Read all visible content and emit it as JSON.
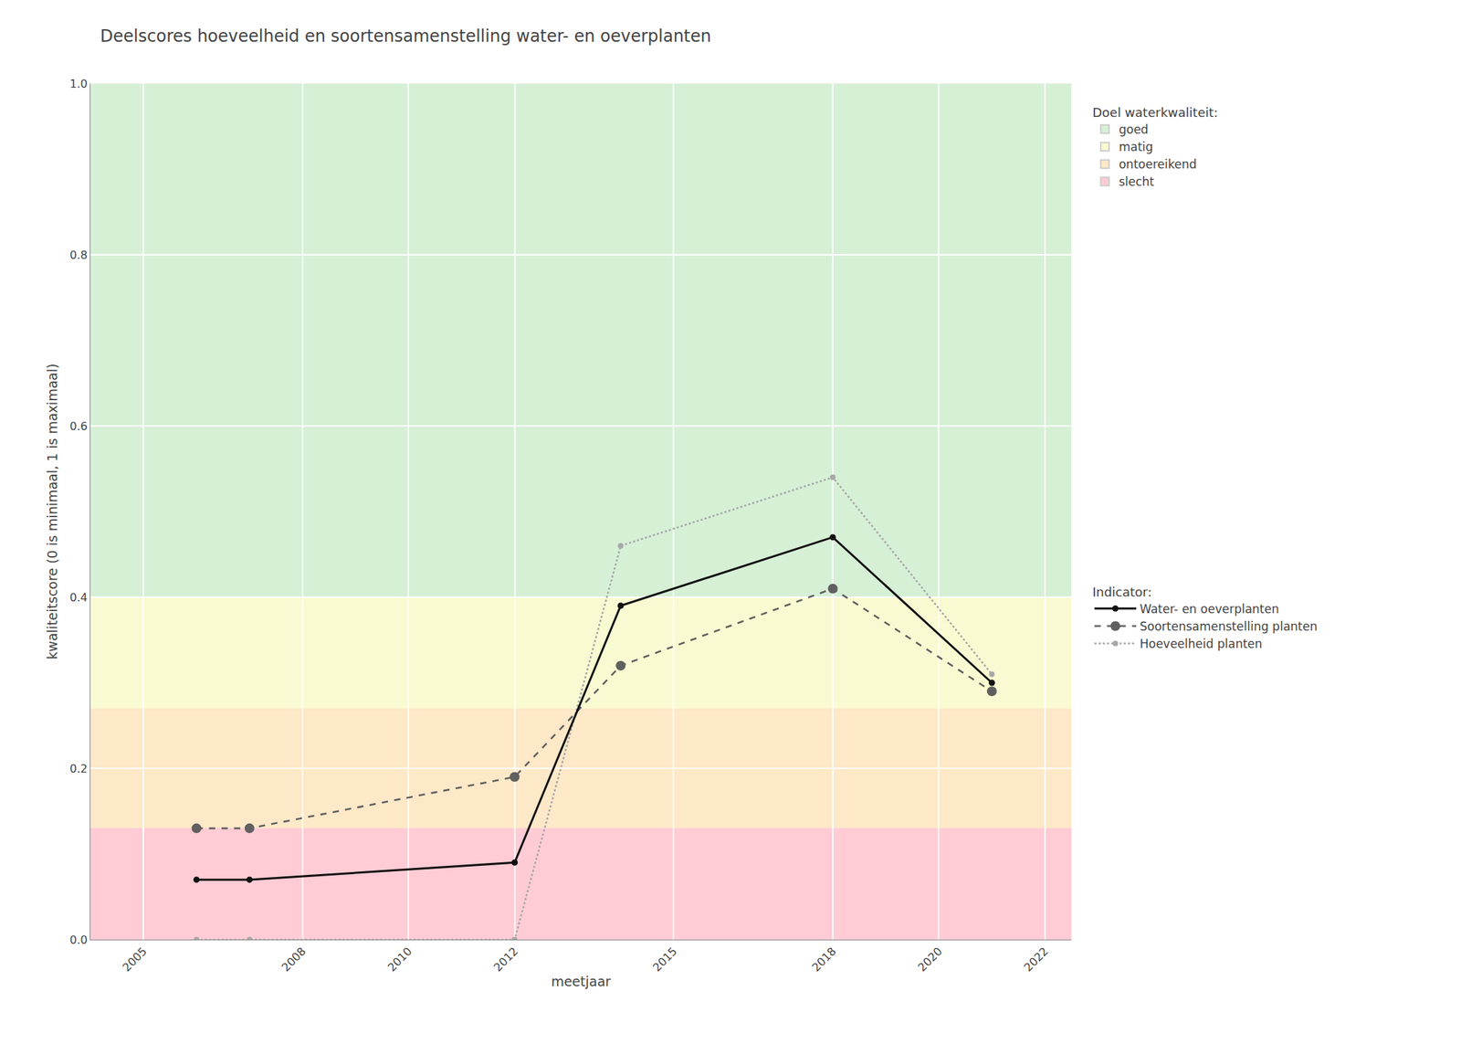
{
  "chart_data": {
    "type": "line",
    "title": "Deelscores hoeveelheid en soortensamenstelling water- en oeverplanten",
    "x_label": "meetjaar",
    "y_label": "kwaliteitscore (0 is minimaal, 1 is maximaal)",
    "xlim": [
      2004.0,
      2022.5
    ],
    "ylim": [
      0.0,
      1.0
    ],
    "xticks": [
      2005,
      2008,
      2010,
      2012,
      2015,
      2018,
      2020,
      2022
    ],
    "yticks": [
      {
        "value": 0.0,
        "label": "0.0"
      },
      0.2,
      0.4,
      0.6,
      0.8,
      {
        "value": 1.0,
        "label": "1.0"
      }
    ],
    "grid": true,
    "legend": "right",
    "bands": {
      "title": "Doel waterkwaliteit:",
      "items": [
        {
          "name": "goed",
          "ymin": 0.4,
          "ymax": 1.0,
          "color": "#d6f0d6"
        },
        {
          "name": "matig",
          "ymin": 0.27,
          "ymax": 0.4,
          "color": "#fafad2"
        },
        {
          "name": "ontoereikend",
          "ymin": 0.13,
          "ymax": 0.27,
          "color": "#fde8c8"
        },
        {
          "name": "slecht",
          "ymin": 0.0,
          "ymax": 0.13,
          "color": "#ffccd5"
        }
      ]
    },
    "series_title": "Indicator:",
    "series": [
      {
        "name": "Water- en oeverplanten",
        "color": "#111111",
        "line_style": "solid",
        "marker": "circle",
        "x": [
          2006,
          2007,
          2012,
          2014,
          2018,
          2021
        ],
        "values": [
          0.07,
          0.07,
          0.09,
          0.39,
          0.47,
          0.3
        ]
      },
      {
        "name": "Soortensamenstelling planten",
        "color": "#606060",
        "line_style": "dash",
        "marker": "circle",
        "x": [
          2006,
          2007,
          2012,
          2014,
          2018,
          2021
        ],
        "values": [
          0.13,
          0.13,
          0.19,
          0.32,
          0.41,
          0.29
        ]
      },
      {
        "name": "Hoeveelheid planten",
        "color": "#a8a8a8",
        "line_style": "dot",
        "marker": "circle",
        "x": [
          2006,
          2007,
          2012,
          2014,
          2018,
          2021
        ],
        "values": [
          0.0,
          0.0,
          0.0,
          0.46,
          0.54,
          0.31
        ]
      }
    ]
  }
}
